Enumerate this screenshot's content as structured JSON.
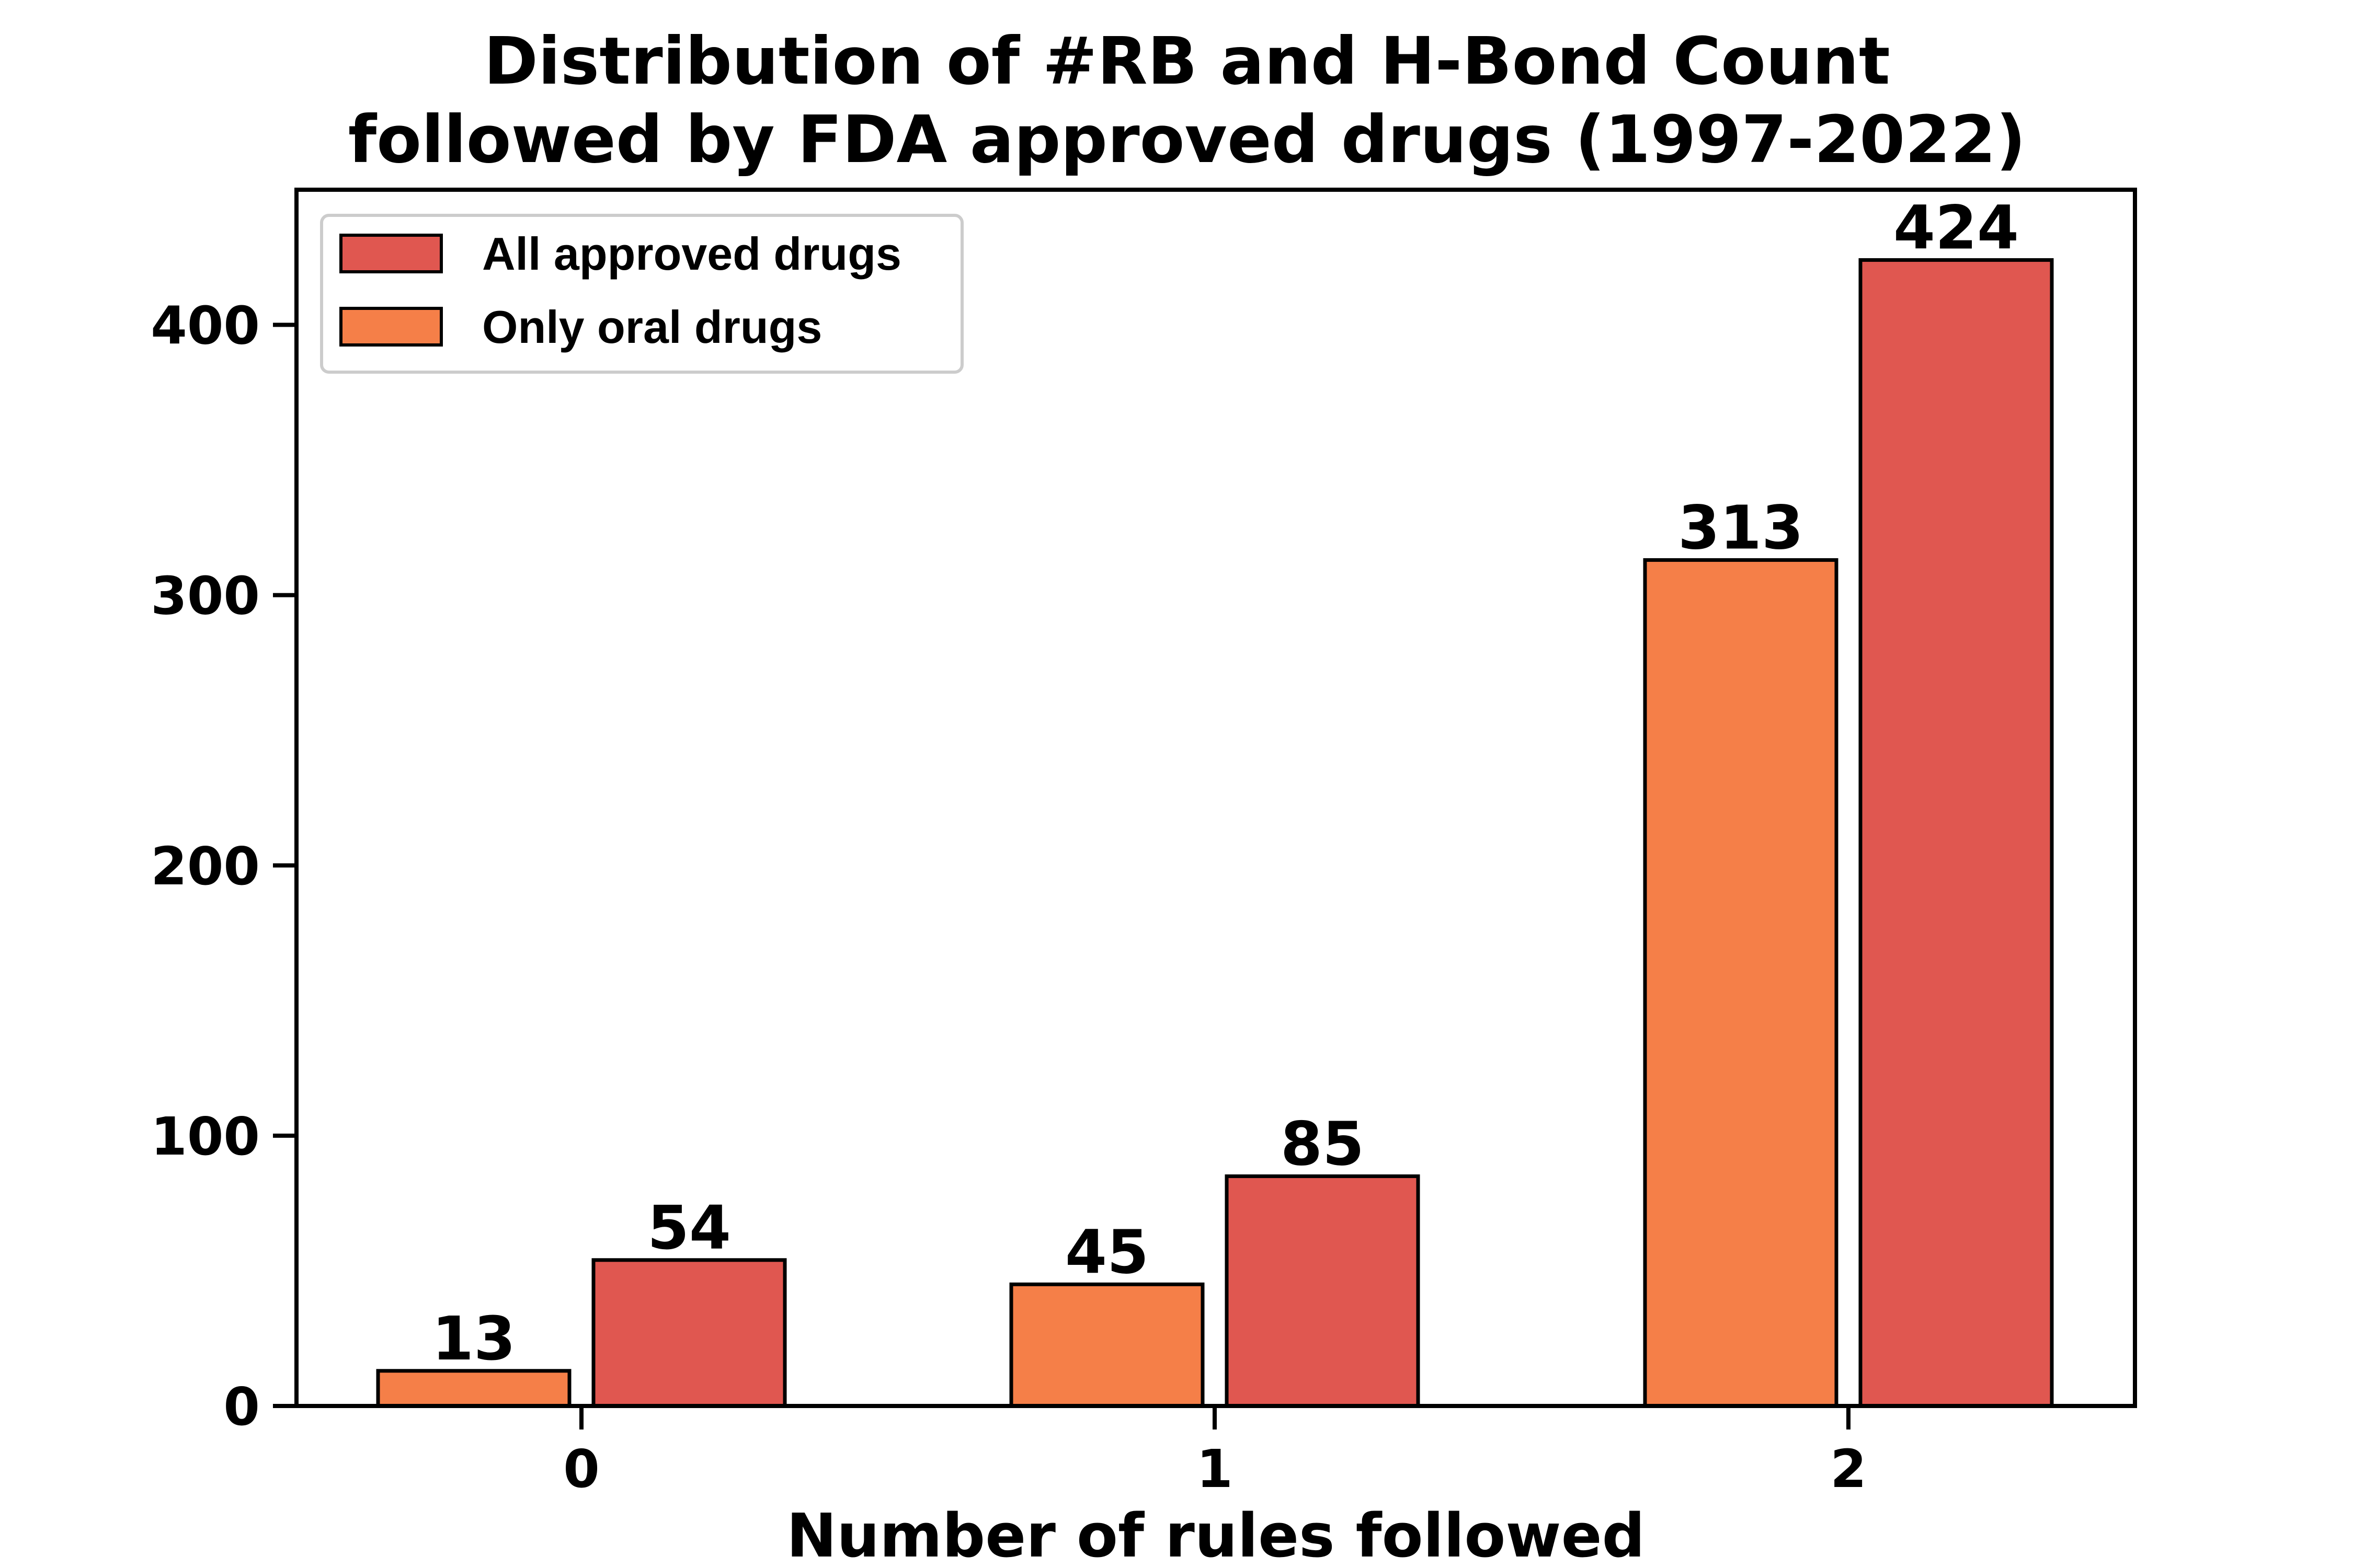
{
  "chart_data": {
    "type": "bar",
    "title": "Distribution of #RB and H-Bond Count\nfollowed by FDA approved drugs (1997-2022)",
    "title_lines": [
      "Distribution of #RB and H-Bond Count",
      "followed by FDA approved drugs (1997-2022)"
    ],
    "xlabel": "Number of rules followed",
    "ylabel": "",
    "categories": [
      "0",
      "1",
      "2"
    ],
    "yticks": [
      0,
      100,
      200,
      300,
      400
    ],
    "ylim": [
      0,
      450
    ],
    "grid": false,
    "legend_position": "top-left",
    "series": [
      {
        "name": "Only oral drugs",
        "values": [
          13,
          45,
          313
        ],
        "color": "#F57F48"
      },
      {
        "name": "All approved drugs",
        "values": [
          54,
          85,
          424
        ],
        "color": "#E05750"
      }
    ],
    "legend_order": [
      "All approved drugs",
      "Only oral drugs"
    ],
    "edge_color": "#000000"
  }
}
